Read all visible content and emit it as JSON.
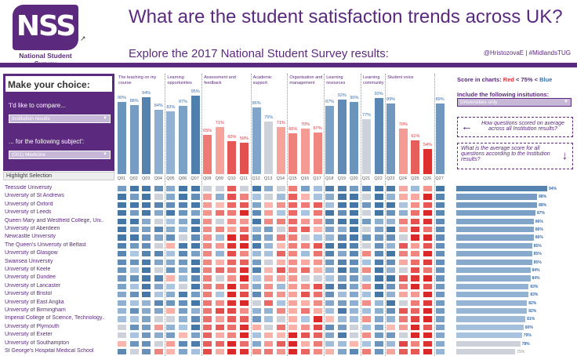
{
  "header": {
    "logo_text": "NSS",
    "logo_subtitle": "National Student Survey",
    "title": "What are the student satisfaction trends across UK?",
    "subtitle": "Explore the 2017 National Student Survey  results:",
    "credits": "@HristozovaE | #MidlandsTUG"
  },
  "left_panel": {
    "title": "Make your choice:",
    "compare_label": "'I'd like to compare...",
    "compare_value": "Institution results",
    "subject_label": "... for the following subject':",
    "subject_value": "(001) Medicine",
    "highlight_label": "Highlight Selection"
  },
  "right_panel": {
    "legend_prefix": "Score in charts: ",
    "legend_red": "Red",
    "legend_mid": " < 75% < ",
    "legend_blue": "Blue",
    "include_label": "Include the following insitutions:",
    "include_value": "Universities only",
    "nav_1": "How questions scored on average across all Institution results?",
    "nav_2": "What is the average score for all questions according to the Institution results?"
  },
  "colors": {
    "brand": "#5b2a7e",
    "red": "#e0323a",
    "blue": "#3b6fb0"
  },
  "chart_data": {
    "type": "heatmap",
    "categories": [
      {
        "name": "The teaching on my course",
        "questions": [
          "Q01",
          "Q02",
          "Q03",
          "Q04"
        ]
      },
      {
        "name": "Learning opportunities",
        "questions": [
          "Q05",
          "Q06",
          "Q07"
        ]
      },
      {
        "name": "Assessment and feedback",
        "questions": [
          "Q08",
          "Q09",
          "Q10",
          "Q11"
        ]
      },
      {
        "name": "Academic support",
        "questions": [
          "Q12",
          "Q13",
          "Q14"
        ]
      },
      {
        "name": "Organisation and management",
        "questions": [
          "Q15",
          "Q16",
          "Q17"
        ]
      },
      {
        "name": "Learning resources",
        "questions": [
          "Q18",
          "Q19",
          "Q20"
        ]
      },
      {
        "name": "Learning community",
        "questions": [
          "Q21",
          "Q22"
        ]
      },
      {
        "name": "Student voice",
        "questions": [
          "Q23",
          "Q24",
          "Q25",
          "Q26"
        ]
      },
      {
        "name": "",
        "questions": [
          "Q27"
        ]
      }
    ],
    "question_averages": [
      90,
      88,
      94,
      84,
      83,
      87,
      95,
      65,
      71,
      60,
      59,
      86,
      75,
      71,
      66,
      70,
      67,
      87,
      92,
      90,
      77,
      93,
      89,
      70,
      61,
      54,
      89
    ],
    "bar_labels": [
      "90%",
      "88%",
      "94%",
      "84%",
      "83%",
      "87%",
      "95%",
      "65%",
      "71%",
      "60%",
      "59%",
      "86%",
      "75%",
      "71%",
      "66%",
      "70%",
      "67%",
      "87%",
      "92%",
      "90%",
      "77%",
      "93%",
      "89%",
      "70%",
      "61%",
      "54%",
      "89%"
    ],
    "institutions": [
      "Teesside University",
      "University of St Andrews",
      "University of Oxford",
      "University of Leeds",
      "Queen Mary and Westfield College, Uni..",
      "University of Aberdeen",
      "Newcastle University",
      "The Queen's University of Belfast",
      "University of Glasgow",
      "Swansea University",
      "University of Keele",
      "University of Dundee",
      "University of Lancaster",
      "University of Bristol",
      "University of East Anglia",
      "University of Birmingham",
      "Imperial College of Science, Technology..",
      "University of Plymouth",
      "University of Exeter",
      "University of Southampton",
      "St George's Hospital Medical School"
    ],
    "institution_averages": [
      94,
      88,
      88,
      87,
      86,
      86,
      86,
      85,
      85,
      85,
      84,
      84,
      83,
      83,
      82,
      82,
      81,
      80,
      79,
      78,
      75
    ],
    "institution_labels": [
      "94%",
      "88%",
      "88%",
      "87%",
      "86%",
      "86%",
      "86%",
      "85%",
      "85%",
      "85%",
      "84%",
      "84%",
      "83%",
      "83%",
      "82%",
      "82%",
      "81%",
      "80%",
      "79%",
      "78%",
      "75%"
    ],
    "threshold": 75
  }
}
